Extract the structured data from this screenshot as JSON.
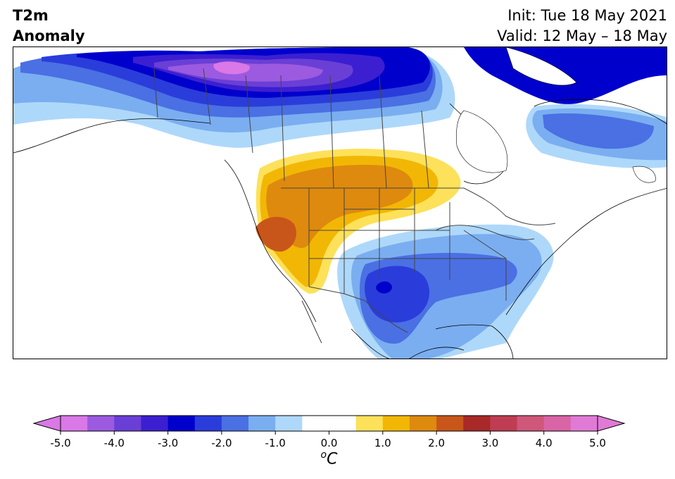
{
  "title": {
    "line1": "T2m",
    "line2": "Anomaly"
  },
  "subtitle": {
    "init": "Init: Tue 18 May 2021",
    "valid": "Valid: 12 May – 18 May"
  },
  "colorbar": {
    "unit_sup": "o",
    "unit_main": "C",
    "ticks": [
      "-5.0",
      "-4.0",
      "-3.0",
      "-2.0",
      "-1.0",
      "0.0",
      "1.0",
      "2.0",
      "3.0",
      "4.0",
      "5.0"
    ],
    "range": [
      -5.0,
      5.0
    ],
    "step": 0.5,
    "colors": [
      "#d978e6",
      "#9c5ae0",
      "#6a3fd6",
      "#3c1fd0",
      "#0000cc",
      "#2a3ddb",
      "#4a70e3",
      "#7aaef0",
      "#aed8fa",
      "#ffffff",
      "#ffffff",
      "#fde15a",
      "#f2b705",
      "#de8a0e",
      "#c8561a",
      "#a92828",
      "#bf3d52",
      "#cf577a",
      "#d964a6",
      "#e07ad6"
    ],
    "under_color": "#d978e6",
    "over_color": "#e07ad6"
  },
  "map": {
    "region": "North America",
    "palette": {
      "purple_light": "#d978e6",
      "purple": "#9c5ae0",
      "violet": "#6a3fd6",
      "indigo": "#3c1fd0",
      "blue_dark": "#0000cc",
      "blue": "#2a3ddb",
      "blue_mid": "#4a70e3",
      "blue_light": "#7aaef0",
      "blue_pale": "#aed8fa",
      "yellow": "#fde15a",
      "gold": "#f2b705",
      "orange": "#de8a0e",
      "rust": "#c8561a"
    }
  }
}
